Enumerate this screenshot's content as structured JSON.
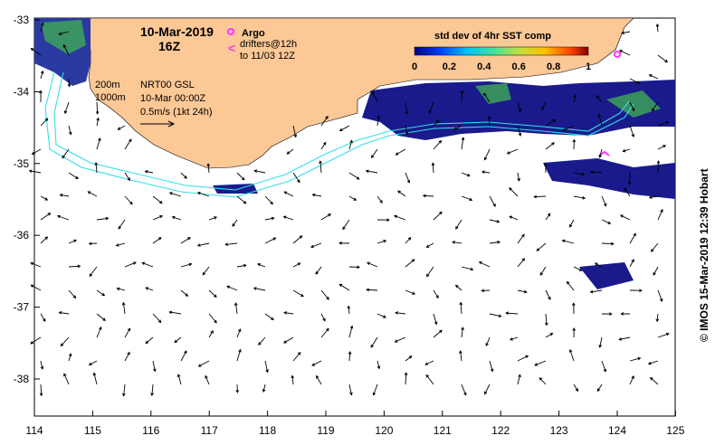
{
  "map": {
    "date": "10-Mar-2019",
    "time": "16Z",
    "argo_label": "Argo",
    "drifters_label": "drifters@12h",
    "drifters_range": "to 11/03 12Z",
    "isobath_200": "200m",
    "isobath_1000": "1000m",
    "current_source": "NRT00 GSL",
    "current_date": "10-Mar 00:00Z",
    "scale_label": "0.5m/s (1kt 24h)",
    "colorbar_title": "std dev of 4hr SST comp",
    "colorbar_ticks": [
      "0",
      "0.2",
      "0.4",
      "0.6",
      "0.8",
      "1"
    ],
    "credit": "© IMOS 15-Mar-2019 12:39 Hobart",
    "lon_ticks": [
      "114",
      "115",
      "116",
      "117",
      "118",
      "119",
      "120",
      "121",
      "122",
      "123",
      "124",
      "125"
    ],
    "lat_ticks": [
      "-33",
      "-34",
      "-35",
      "-36",
      "-37",
      "-38"
    ],
    "colors": {
      "land": "#fcc896",
      "isobath": "#33e0e6",
      "argo": "#ff33ff",
      "sst_dark": "#1a1a8c"
    }
  }
}
